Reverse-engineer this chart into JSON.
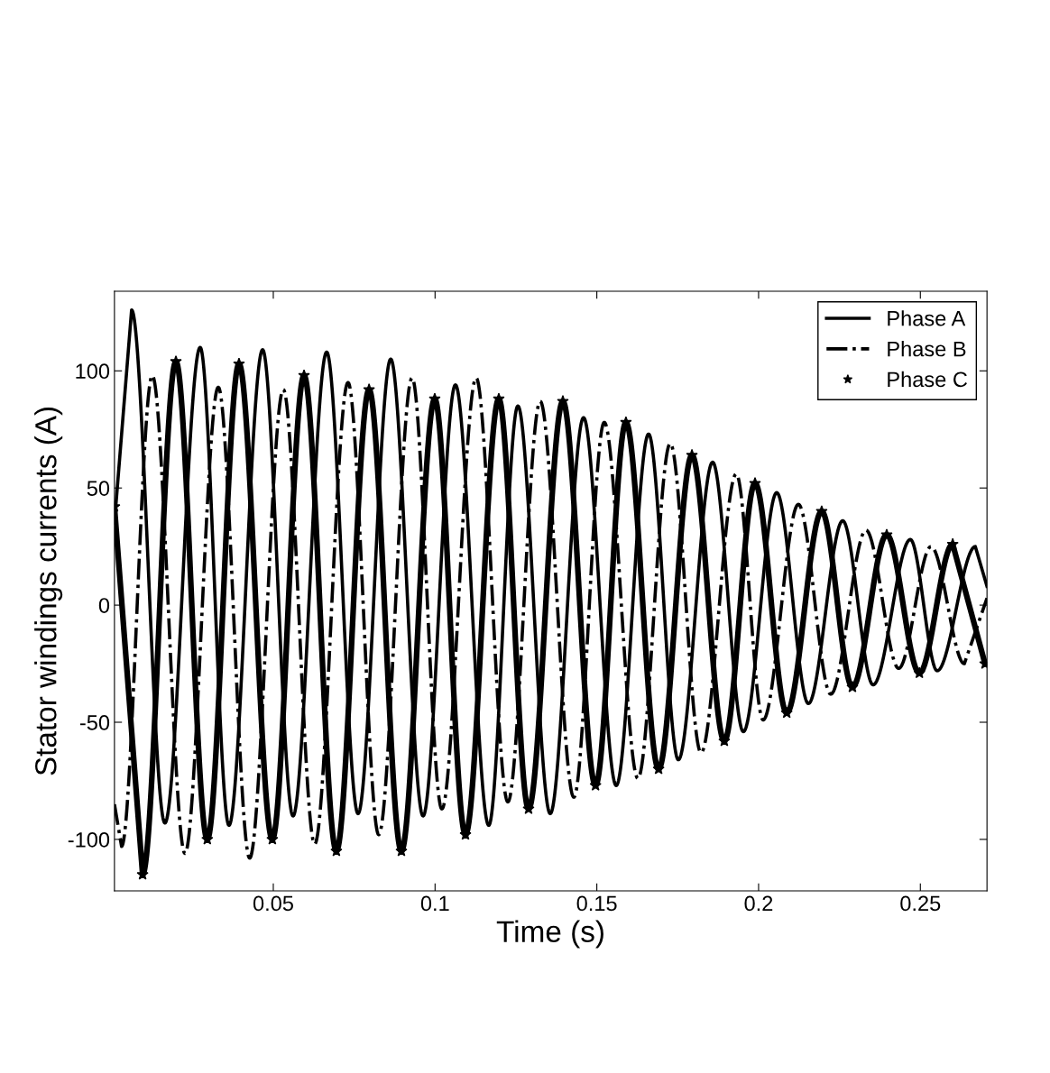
{
  "chart_data": {
    "type": "line",
    "xlabel": "Time (s)",
    "ylabel": "Stator windings currents (A)",
    "xlim": [
      0.0009,
      0.2706
    ],
    "ylim": [
      -122,
      134
    ],
    "xticks": [
      0.05,
      0.1,
      0.15,
      0.2,
      0.25
    ],
    "yticks": [
      -100,
      -50,
      0,
      50,
      100
    ],
    "grid": false,
    "legend": "top right",
    "series": [
      {
        "name": "Phase A",
        "color": "#000000",
        "line_style": "solid",
        "marker": "none",
        "x": [
          0.0009,
          0.0062,
          0.0165,
          0.0274,
          0.0363,
          0.0467,
          0.0561,
          0.0665,
          0.0762,
          0.0863,
          0.0963,
          0.1063,
          0.1166,
          0.1256,
          0.1356,
          0.1459,
          0.156,
          0.166,
          0.1752,
          0.1858,
          0.1953,
          0.2056,
          0.2154,
          0.226,
          0.2354,
          0.2469,
          0.2552,
          0.267,
          0.2706
        ],
        "values": [
          35,
          126,
          -93,
          110,
          -94,
          109,
          -90,
          108,
          -89,
          105,
          -90,
          94,
          -94,
          85,
          -89,
          80,
          -77,
          73,
          -66,
          61,
          -54,
          48,
          -42,
          36,
          -34,
          28,
          -28,
          25,
          8
        ]
      },
      {
        "name": "Phase B",
        "color": "#000000",
        "line_style": "dashdot",
        "marker": "none",
        "x": [
          0.0009,
          0.0031,
          0.0126,
          0.0227,
          0.033,
          0.0427,
          0.0531,
          0.0628,
          0.0731,
          0.0826,
          0.0929,
          0.1021,
          0.1127,
          0.1225,
          0.1325,
          0.1429,
          0.1523,
          0.1627,
          0.1727,
          0.1822,
          0.1931,
          0.2014,
          0.2123,
          0.2223,
          0.2332,
          0.2433,
          0.2533,
          0.2636,
          0.2706
        ],
        "values": [
          -85,
          -103,
          98,
          -106,
          93,
          -108,
          92,
          -102,
          95,
          -98,
          97,
          -87,
          97,
          -84,
          87,
          -82,
          78,
          -74,
          69,
          -63,
          56,
          -49,
          43,
          -38,
          32,
          -27,
          25,
          -25,
          3
        ]
      },
      {
        "name": "Phase C",
        "color": "#000000",
        "line_style": "solid",
        "marker": "star",
        "x": [
          0.0009,
          0.0096,
          0.0199,
          0.0296,
          0.0394,
          0.0497,
          0.0595,
          0.0695,
          0.0796,
          0.0896,
          0.0999,
          0.1094,
          0.1197,
          0.1289,
          0.1395,
          0.1496,
          0.159,
          0.1691,
          0.1794,
          0.1894,
          0.1989,
          0.2087,
          0.2195,
          0.229,
          0.2396,
          0.2497,
          0.26,
          0.27
        ],
        "values": [
          42,
          -115,
          104,
          -100,
          103,
          -100,
          98,
          -105,
          92,
          -105,
          88,
          -98,
          88,
          -87,
          87,
          -77,
          78,
          -70,
          64,
          -58,
          52,
          -46,
          40,
          -35,
          30,
          -29,
          26,
          -25
        ]
      }
    ]
  }
}
